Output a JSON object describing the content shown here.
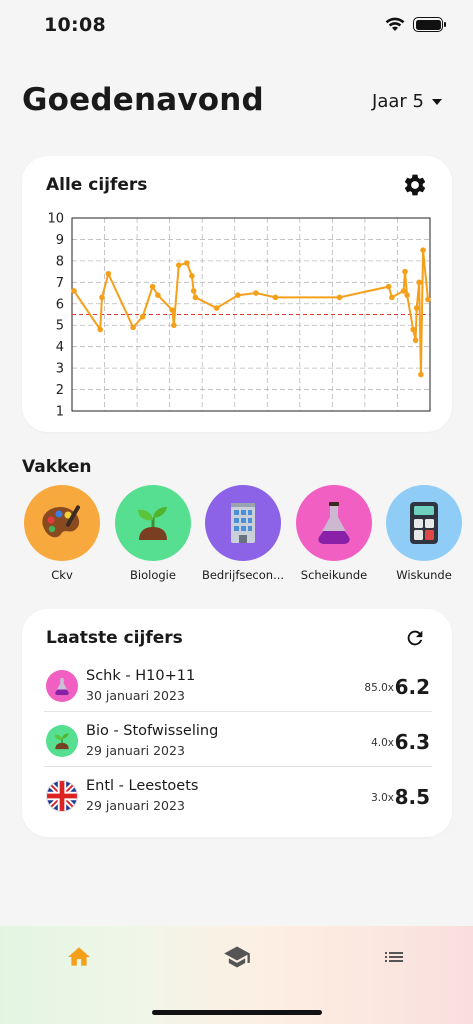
{
  "status": {
    "time": "10:08"
  },
  "header": {
    "greeting": "Goedenavond",
    "year": "Jaar 5"
  },
  "chart_card": {
    "title": "Alle cijfers"
  },
  "chart_data": {
    "type": "line",
    "title": "",
    "xlabel": "",
    "ylabel": "",
    "ylim": [
      1,
      10
    ],
    "yticks": [
      "1",
      "2",
      "3",
      "4",
      "5",
      "6",
      "7",
      "8",
      "9",
      "10"
    ],
    "threshold": 5.5,
    "grid": true,
    "series": [
      {
        "color": "#f5a01a",
        "values": [
          6.6,
          4.8,
          6.3,
          7.4,
          4.9,
          5.4,
          6.8,
          6.4,
          5.7,
          5.0,
          7.8,
          7.9,
          7.3,
          6.6,
          6.3,
          5.8,
          6.4,
          6.5,
          6.3,
          6.3,
          6.8,
          6.3,
          6.6,
          7.5,
          6.4,
          4.8,
          4.3,
          5.8,
          7.0,
          2.7,
          8.5,
          6.2
        ]
      }
    ]
  },
  "subjects_section": {
    "title": "Vakken"
  },
  "subjects": [
    {
      "label": "Ckv",
      "color": "#f7a93e",
      "icon": "palette-icon"
    },
    {
      "label": "Biologie",
      "color": "#56df90",
      "icon": "sprout-icon"
    },
    {
      "label": "Bedrijfseconomie",
      "label_short": "Bedrijfsecon...",
      "color": "#8c63e6",
      "icon": "building-icon"
    },
    {
      "label": "Scheikunde",
      "color": "#f25fc2",
      "icon": "flask-icon"
    },
    {
      "label": "Wiskunde",
      "color": "#8fcdf7",
      "icon": "calculator-icon"
    }
  ],
  "grades_card": {
    "title": "Laatste cijfers"
  },
  "grades": [
    {
      "title": "Schk - H10+11",
      "date": "30 januari 2023",
      "weight": "85.0x",
      "value": "6.2",
      "icon": "flask-icon",
      "color": "#f25fc2"
    },
    {
      "title": "Bio - Stofwisseling",
      "date": "29 januari 2023",
      "weight": "4.0x",
      "value": "6.3",
      "icon": "sprout-icon",
      "color": "#56df90"
    },
    {
      "title": "Entl - Leestoets",
      "date": "29 januari 2023",
      "weight": "3.0x",
      "value": "8.5",
      "icon": "uk-flag-icon",
      "color": "#ffffff"
    }
  ],
  "tabs": [
    {
      "name": "home",
      "icon": "home-icon",
      "color": "#f5a01a"
    },
    {
      "name": "subjects",
      "icon": "graduation-cap-icon",
      "color": "#555555"
    },
    {
      "name": "list",
      "icon": "list-icon",
      "color": "#555555"
    }
  ]
}
